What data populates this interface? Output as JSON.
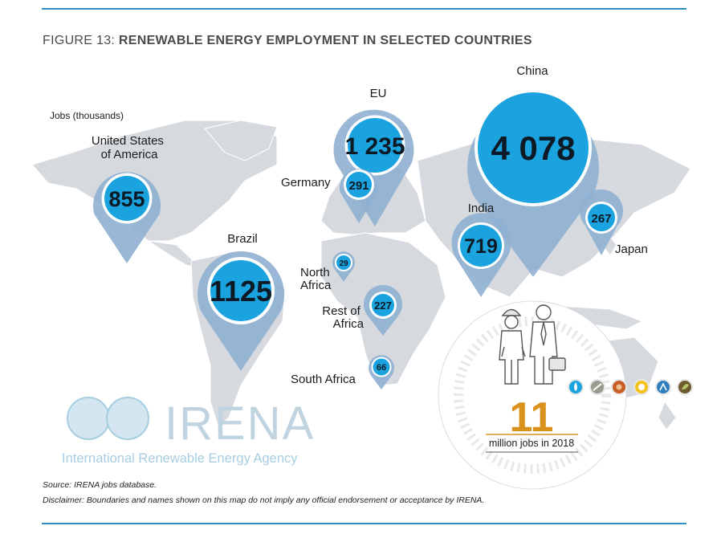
{
  "figure": {
    "label": "FIGURE 13:",
    "title": "RENEWABLE ENERGY EMPLOYMENT IN SELECTED COUNTRIES",
    "unit": "Jobs (thousands)"
  },
  "colors": {
    "accent": "#1aa3de",
    "pin_outer": "#8fb0d0",
    "map": "#d6dadf",
    "rule": "#2f8fc0",
    "total": "#d9921c"
  },
  "regions": [
    {
      "id": "usa",
      "label_lines": [
        "United States",
        "of America"
      ],
      "value": "855"
    },
    {
      "id": "brazil",
      "label_lines": [
        "Brazil"
      ],
      "value": "1125"
    },
    {
      "id": "eu",
      "label_lines": [
        "EU"
      ],
      "value": "1 235"
    },
    {
      "id": "germany",
      "label_lines": [
        "Germany"
      ],
      "value": "291"
    },
    {
      "id": "china",
      "label_lines": [
        "China"
      ],
      "value": "4 078"
    },
    {
      "id": "india",
      "label_lines": [
        "India"
      ],
      "value": "719"
    },
    {
      "id": "japan",
      "label_lines": [
        "Japan"
      ],
      "value": "267"
    },
    {
      "id": "north-africa",
      "label_lines": [
        "North",
        "Africa"
      ],
      "value": "29"
    },
    {
      "id": "rest-of-africa",
      "label_lines": [
        "Rest of",
        "Africa"
      ],
      "value": "227"
    },
    {
      "id": "south-africa",
      "label_lines": [
        "South Africa"
      ],
      "value": "66"
    }
  ],
  "total": {
    "value": "11",
    "caption": "million jobs in 2018"
  },
  "sector_icons": [
    "hydropower-icon",
    "geothermal-icon",
    "bioenergy-icon",
    "solar-icon",
    "wind-icon",
    "biofuels-icon"
  ],
  "logo": {
    "name": "IRENA",
    "subtitle": "International Renewable Energy Agency"
  },
  "footer": {
    "source": "Source: IRENA jobs database.",
    "disclaimer": "Disclaimer: Boundaries and names shown on this map do not imply any official endorsement or acceptance by IRENA."
  }
}
